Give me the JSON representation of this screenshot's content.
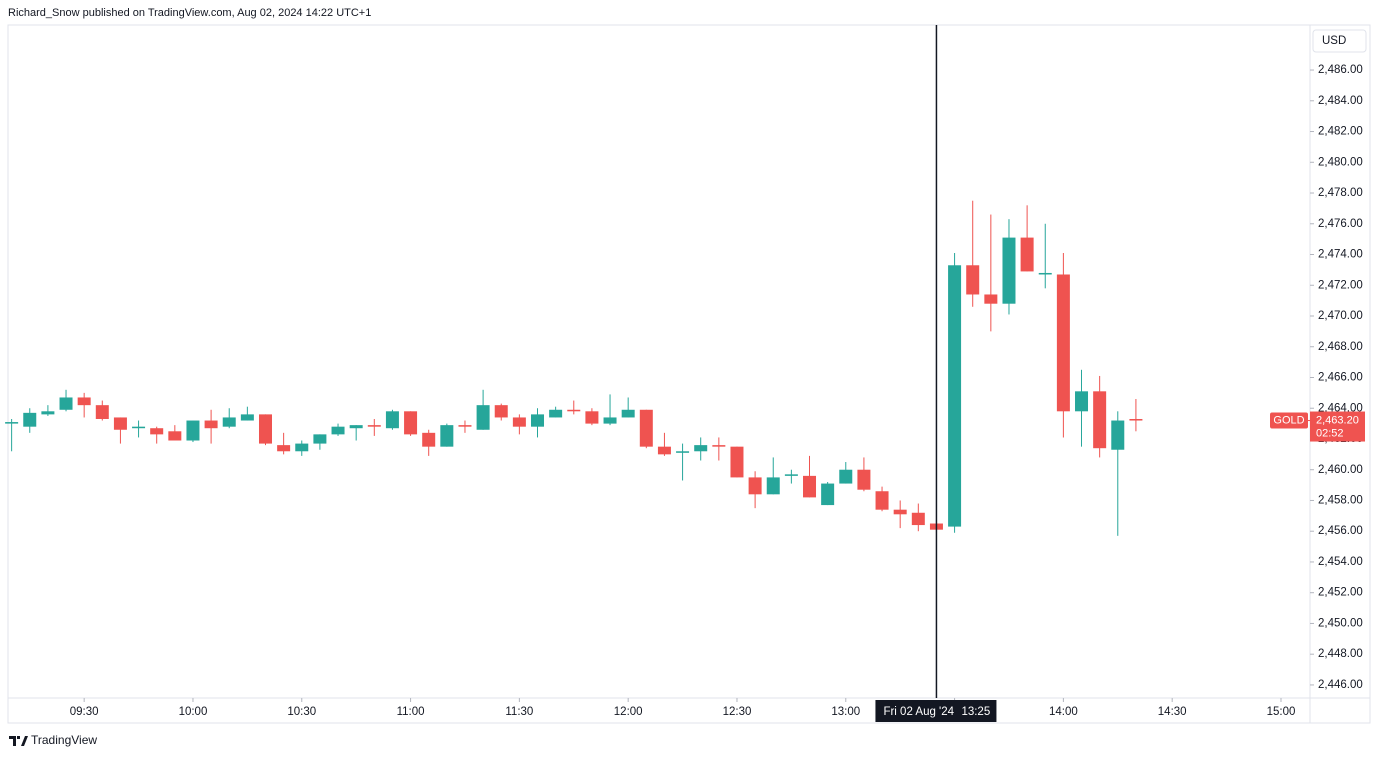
{
  "header": {
    "title": "Richard_Snow published on TradingView.com, Aug 02, 2024 14:22 UTC+1"
  },
  "footer": {
    "brand": "TradingView"
  },
  "chart_data": {
    "type": "candlestick",
    "currency": "USD",
    "up_color": "#26a69a",
    "down_color": "#ef5350",
    "x": [
      "09:10",
      "09:15",
      "09:20",
      "09:25",
      "09:30",
      "09:35",
      "09:40",
      "09:45",
      "09:50",
      "09:55",
      "10:00",
      "10:05",
      "10:10",
      "10:15",
      "10:20",
      "10:25",
      "10:30",
      "10:35",
      "10:40",
      "10:45",
      "10:50",
      "10:55",
      "11:00",
      "11:05",
      "11:10",
      "11:15",
      "11:20",
      "11:25",
      "11:30",
      "11:35",
      "11:40",
      "11:45",
      "11:50",
      "11:55",
      "12:00",
      "12:05",
      "12:10",
      "12:15",
      "12:20",
      "12:25",
      "12:30",
      "12:35",
      "12:40",
      "12:45",
      "12:50",
      "12:55",
      "13:00",
      "13:05",
      "13:10",
      "13:15",
      "13:20",
      "13:25",
      "13:30",
      "13:35",
      "13:40",
      "13:45",
      "13:50",
      "13:55",
      "14:00",
      "14:05",
      "14:10",
      "14:15",
      "14:20"
    ],
    "open": [
      2463.0,
      2462.8,
      2463.6,
      2463.9,
      2464.7,
      2464.2,
      2463.4,
      2462.7,
      2462.7,
      2462.5,
      2461.9,
      2463.2,
      2462.8,
      2463.2,
      2463.6,
      2461.6,
      2461.2,
      2461.7,
      2462.3,
      2462.7,
      2462.9,
      2462.7,
      2463.8,
      2462.4,
      2461.5,
      2462.9,
      2462.6,
      2464.2,
      2463.4,
      2462.8,
      2463.4,
      2463.9,
      2463.8,
      2463.0,
      2463.4,
      2463.9,
      2461.5,
      2461.1,
      2461.2,
      2461.6,
      2461.5,
      2459.5,
      2458.4,
      2459.6,
      2459.6,
      2457.7,
      2459.1,
      2460.0,
      2458.6,
      2457.4,
      2457.2,
      2456.5,
      2456.3,
      2473.3,
      2471.4,
      2470.8,
      2475.1,
      2472.7,
      2472.7,
      2463.8,
      2465.1,
      2461.3,
      2463.3
    ],
    "high": [
      2463.3,
      2464.0,
      2464.2,
      2465.2,
      2465.0,
      2464.5,
      2463.4,
      2463.2,
      2462.8,
      2462.9,
      2463.2,
      2463.9,
      2464.0,
      2464.1,
      2463.6,
      2462.4,
      2461.9,
      2462.3,
      2463.0,
      2462.9,
      2463.3,
      2463.9,
      2463.8,
      2462.6,
      2463.0,
      2463.2,
      2465.2,
      2464.3,
      2463.6,
      2464.0,
      2464.1,
      2464.5,
      2464.0,
      2464.9,
      2464.7,
      2463.9,
      2462.4,
      2461.7,
      2462.1,
      2462.1,
      2461.5,
      2459.9,
      2460.8,
      2460.0,
      2460.9,
      2459.2,
      2460.5,
      2460.8,
      2458.9,
      2458.0,
      2457.8,
      2456.5,
      2474.1,
      2477.5,
      2476.6,
      2476.3,
      2477.2,
      2476.0,
      2474.1,
      2466.5,
      2466.1,
      2463.8,
      2464.6
    ],
    "low": [
      2461.2,
      2462.4,
      2463.5,
      2463.8,
      2463.4,
      2463.2,
      2461.7,
      2462.1,
      2461.7,
      2461.9,
      2461.8,
      2461.7,
      2462.7,
      2463.2,
      2461.6,
      2461.0,
      2460.9,
      2461.3,
      2462.2,
      2461.9,
      2462.2,
      2462.6,
      2462.2,
      2460.9,
      2461.5,
      2462.4,
      2462.6,
      2463.2,
      2462.3,
      2462.1,
      2463.4,
      2463.6,
      2462.9,
      2462.9,
      2463.4,
      2461.4,
      2460.9,
      2459.3,
      2460.6,
      2460.6,
      2459.5,
      2457.5,
      2458.4,
      2459.1,
      2458.2,
      2457.7,
      2459.1,
      2458.6,
      2457.3,
      2456.2,
      2456.0,
      2455.9,
      2455.9,
      2470.6,
      2469.0,
      2470.1,
      2472.9,
      2471.8,
      2462.1,
      2461.5,
      2460.8,
      2455.7,
      2462.5
    ],
    "close": [
      2463.1,
      2463.7,
      2463.8,
      2464.7,
      2464.2,
      2463.3,
      2462.6,
      2462.8,
      2462.3,
      2461.9,
      2463.2,
      2462.7,
      2463.4,
      2463.6,
      2461.7,
      2461.2,
      2461.7,
      2462.3,
      2462.8,
      2462.9,
      2462.8,
      2463.8,
      2462.3,
      2461.5,
      2462.9,
      2462.8,
      2464.2,
      2463.4,
      2462.8,
      2463.6,
      2463.9,
      2463.8,
      2463.0,
      2463.4,
      2463.9,
      2461.5,
      2461.0,
      2461.2,
      2461.6,
      2461.5,
      2459.5,
      2458.4,
      2459.5,
      2459.7,
      2458.2,
      2459.1,
      2460.0,
      2458.7,
      2457.4,
      2457.1,
      2456.4,
      2456.1,
      2473.3,
      2471.4,
      2470.8,
      2475.1,
      2472.9,
      2472.8,
      2463.8,
      2465.1,
      2461.4,
      2463.2,
      2463.2
    ],
    "xlim": [
      "09:09",
      "15:08"
    ],
    "xticks": [
      "09:30",
      "10:00",
      "10:30",
      "11:00",
      "11:30",
      "12:00",
      "12:30",
      "13:00",
      "13:30",
      "14:00",
      "14:30",
      "15:00"
    ],
    "ylim": [
      2445.15,
      2488.93
    ],
    "yticks": [
      {
        "value": 2446,
        "label": "2,446.00"
      },
      {
        "value": 2448,
        "label": "2,448.00"
      },
      {
        "value": 2450,
        "label": "2,450.00"
      },
      {
        "value": 2452,
        "label": "2,452.00"
      },
      {
        "value": 2454,
        "label": "2,454.00"
      },
      {
        "value": 2456,
        "label": "2,456.00"
      },
      {
        "value": 2458,
        "label": "2,458.00"
      },
      {
        "value": 2460,
        "label": "2,460.00"
      },
      {
        "value": 2462,
        "label": "2,462.00"
      },
      {
        "value": 2464,
        "label": "2,464.00"
      },
      {
        "value": 2466,
        "label": "2,466.00"
      },
      {
        "value": 2468,
        "label": "2,468.00"
      },
      {
        "value": 2470,
        "label": "2,470.00"
      },
      {
        "value": 2472,
        "label": "2,472.00"
      },
      {
        "value": 2474,
        "label": "2,474.00"
      },
      {
        "value": 2476,
        "label": "2,476.00"
      },
      {
        "value": 2478,
        "label": "2,478.00"
      },
      {
        "value": 2480,
        "label": "2,480.00"
      },
      {
        "value": 2482,
        "label": "2,482.00"
      },
      {
        "value": 2484,
        "label": "2,484.00"
      },
      {
        "value": 2486,
        "label": "2,486.00"
      }
    ],
    "grid": false,
    "crosshair": {
      "date_label": "Fri 02 Aug '24",
      "x": "13:25"
    },
    "last_price": {
      "name": "GOLD",
      "value": 2463.2,
      "label": "2,463.20",
      "countdown": "02:52"
    }
  }
}
